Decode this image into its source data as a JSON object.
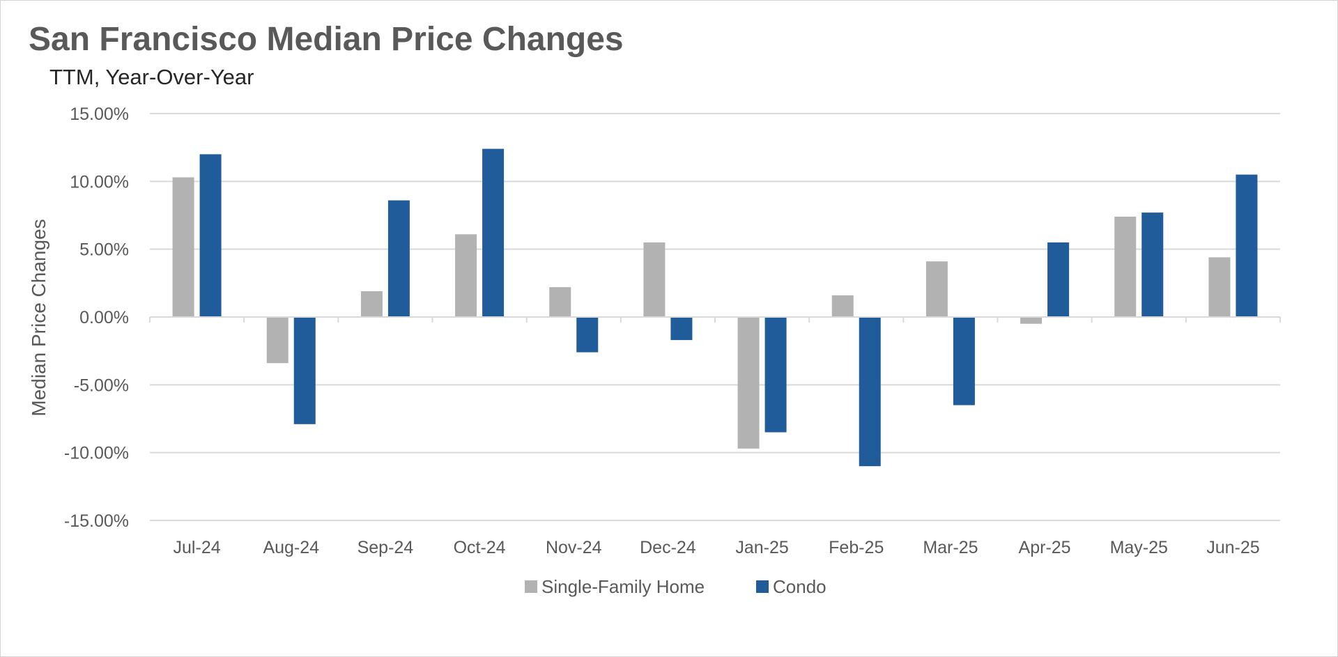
{
  "chart_data": {
    "type": "bar",
    "title": "San Francisco Median Price Changes",
    "subtitle": "TTM, Year-Over-Year",
    "xlabel": "",
    "ylabel": "Median Price Changes",
    "ylim": [
      -15,
      15
    ],
    "yticks": [
      15,
      10,
      5,
      0,
      -5,
      -10,
      -15
    ],
    "ytick_labels": [
      "15.00%",
      "10.00%",
      "5.00%",
      "0.00%",
      "-5.00%",
      "-10.00%",
      "-15.00%"
    ],
    "grid": true,
    "legend_position": "bottom",
    "categories": [
      "Jul-24",
      "Aug-24",
      "Sep-24",
      "Oct-24",
      "Nov-24",
      "Dec-24",
      "Jan-25",
      "Feb-25",
      "Mar-25",
      "Apr-25",
      "May-25",
      "Jun-25"
    ],
    "series": [
      {
        "name": "Single-Family Home",
        "color": "#b2b2b2",
        "values": [
          10.3,
          -3.4,
          1.9,
          6.1,
          2.2,
          5.5,
          -9.7,
          1.6,
          4.1,
          -0.5,
          7.4,
          4.4
        ]
      },
      {
        "name": "Condo",
        "color": "#1f5c99",
        "values": [
          12.0,
          -7.9,
          8.6,
          12.4,
          -2.6,
          -1.7,
          -8.5,
          -11.0,
          -6.5,
          5.5,
          7.7,
          10.5
        ]
      }
    ]
  }
}
